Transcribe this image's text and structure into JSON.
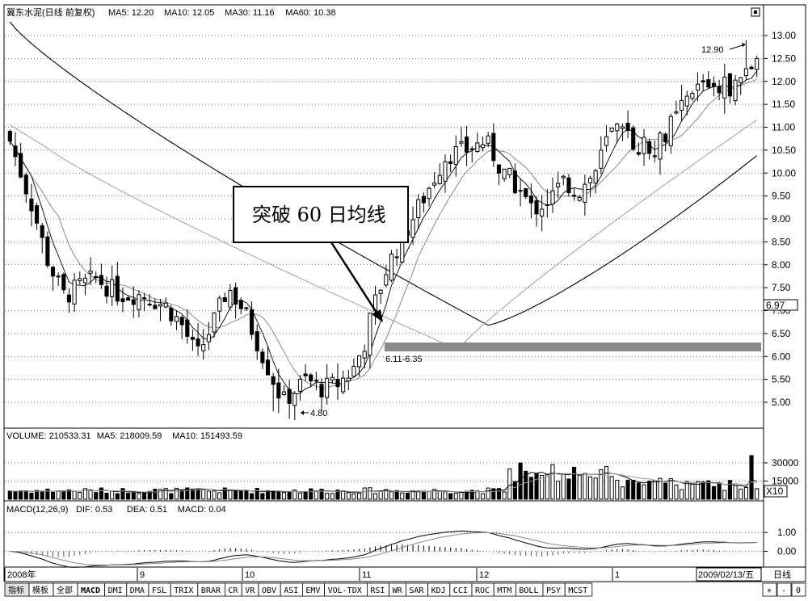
{
  "header": {
    "stock": "冀东水泥(日线 前复权)",
    "ma_labels": [
      {
        "name": "MA5",
        "value": "12.20",
        "color": "#000000"
      },
      {
        "name": "MA10",
        "value": "12.05",
        "color": "#000000"
      },
      {
        "name": "MA30",
        "value": "11.16",
        "color": "#9a9a9a"
      },
      {
        "name": "MA60",
        "value": "10.38",
        "color": "#000000"
      }
    ]
  },
  "volume_header": {
    "items": [
      {
        "name": "VOLUME",
        "value": "210533.31"
      },
      {
        "name": "MA5",
        "value": "218009.59"
      },
      {
        "name": "MA10",
        "value": "151493.59"
      }
    ]
  },
  "macd_header": {
    "title": "MACD(12,26,9)",
    "items": [
      {
        "name": "DIF",
        "value": "0.53",
        "color": "#000000"
      },
      {
        "name": "DEA",
        "value": "0.51",
        "color": "#000000"
      },
      {
        "name": "MACD",
        "value": "0.04",
        "color": "#9a9a9a"
      }
    ]
  },
  "annotation": {
    "text": "突破 60 日均线",
    "high_label": "12.90",
    "low_label": "4.80",
    "band_label": "6.11-6.35",
    "price_tag": "6.97"
  },
  "xaxis": {
    "labels": [
      "2008年",
      "9",
      "10",
      "11",
      "12",
      "1"
    ],
    "date": "2009/02/13/五",
    "period": "日线"
  },
  "tabs": [
    "指标",
    "模板",
    "全部",
    "MACD",
    "DMI",
    "DMA",
    "FSL",
    "TRIX",
    "BRAR",
    "CR",
    "VR",
    "OBV",
    "ASI",
    "EMV",
    "VOL-TDX",
    "RSI",
    "WR",
    "SAR",
    "KDJ",
    "CCI",
    "ROC",
    "MTM",
    "BOLL",
    "PSY",
    "MCST"
  ],
  "tab_controls": [
    "+",
    "-",
    "0"
  ],
  "volume_unit": "X10",
  "chart_data": {
    "type": "candlestick",
    "price_axis": {
      "ticks": [
        5.0,
        5.5,
        6.0,
        6.5,
        7.0,
        7.5,
        8.0,
        8.5,
        9.0,
        9.5,
        10.0,
        10.5,
        11.0,
        11.5,
        12.0,
        12.5,
        13.0
      ],
      "range": [
        4.45,
        13.4
      ]
    },
    "volume_axis": {
      "ticks": [
        15000,
        30000
      ],
      "range": [
        0,
        40000
      ]
    },
    "macd_axis": {
      "ticks": [
        0.0,
        1.0
      ],
      "range": [
        -0.75,
        1.65
      ]
    },
    "key_points": {
      "start": 10.8,
      "low": 4.8,
      "breakout_low": 6.11,
      "breakout_high": 6.35,
      "high": 12.9,
      "end": 12.2,
      "ma60_end": 10.38,
      "ma30_end": 11.16
    },
    "period_days": 140
  }
}
